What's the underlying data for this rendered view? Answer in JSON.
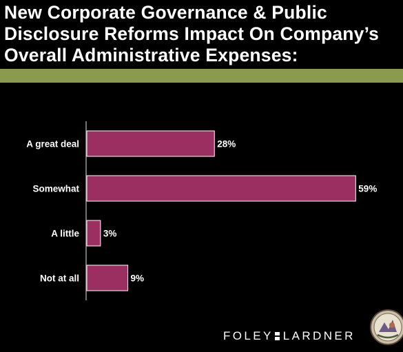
{
  "title_lines": [
    "New Corporate Governance & Public",
    "Disclosure Reforms Impact On Company’s",
    "Overall Administrative Expenses:"
  ],
  "colors": {
    "background": "#000000",
    "rule": "#8a9a4e",
    "bar": "#9b2f62",
    "bar_outline": "#ffffff",
    "text": "#ffffff"
  },
  "chart_data": {
    "type": "bar",
    "orientation": "horizontal",
    "categories": [
      "A great deal",
      "Somewhat",
      "A little",
      "Not at all"
    ],
    "values": [
      28,
      59,
      3,
      9
    ],
    "value_labels": [
      "28%",
      "59%",
      "3%",
      "9%"
    ],
    "unit": "%",
    "title": "New Corporate Governance & Public Disclosure Reforms Impact On Company’s Overall Administrative Expenses:",
    "xlabel": "",
    "ylabel": "",
    "xlim": [
      0,
      65
    ],
    "grid": false,
    "legend": false
  },
  "footer": {
    "brand_left": "FOLEY",
    "brand_right": "LARDNER",
    "seal_icon": "firm-seal-icon"
  }
}
